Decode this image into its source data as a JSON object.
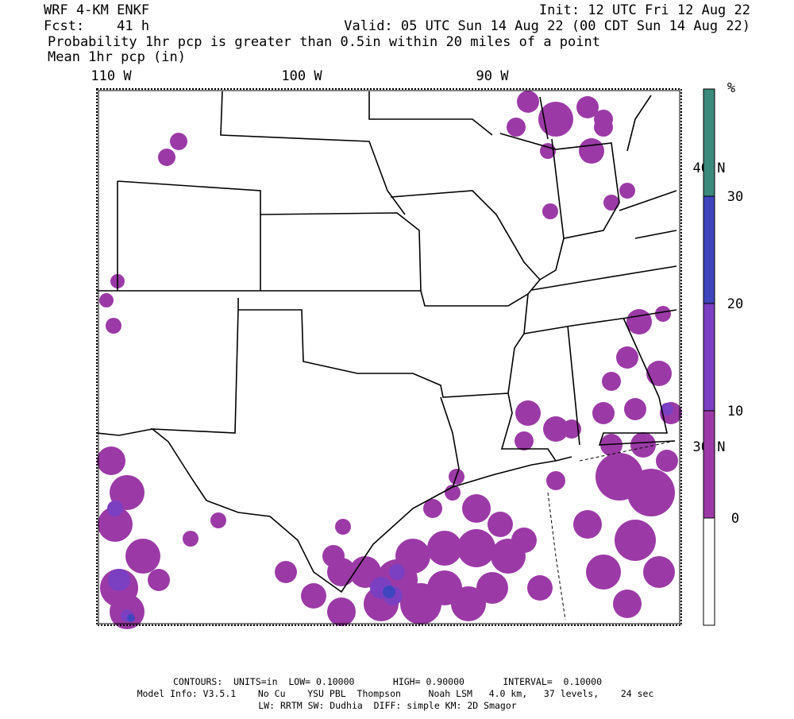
{
  "header": {
    "model": "WRF 4-KM ENKF",
    "init": "Init: 12 UTC Fri 12 Aug 22",
    "fcst": "Fcst:    41 h",
    "valid": "Valid: 05 UTC Sun 14 Aug 22 (00 CDT Sun 14 Aug 22)",
    "field1": "Probability 1hr pcp is greater than 0.5in within 20 miles of a point",
    "field2": "Mean 1hr pcp (in)"
  },
  "map": {
    "lon_labels": [
      "110 W",
      "100 W",
      "90 W"
    ],
    "lat_labels": [
      "40 N",
      "30 N"
    ]
  },
  "colorbar": {
    "unit": "%",
    "ticks": [
      0,
      10,
      20,
      30
    ],
    "colors": [
      "#ffffff",
      "#9b3aa6",
      "#7b3fc2",
      "#3f46bd",
      "#3b8a7c"
    ]
  },
  "footer": {
    "line1": "CONTOURS:  UNITS=in  LOW= 0.10000       HIGH= 0.90000       INTERVAL=  0.10000",
    "line2": "Model Info: V3.5.1    No Cu    YSU PBL  Thompson     Noah LSM   4.0 km,   37 levels,    24 sec",
    "line3": "LW: RRTM SW: Dudhia  DIFF: simple KM: 2D Smagor"
  }
}
